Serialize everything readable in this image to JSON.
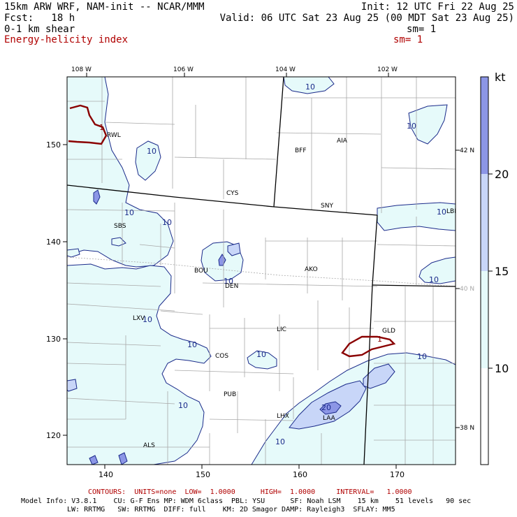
{
  "header": {
    "model": "15km ARW WRF, NAM-init -- NCAR/MMM",
    "init": "Init: 12 UTC Fri 22 Aug 25",
    "fcst": "Fcst:   18 h",
    "valid": "Valid: 06 UTC Sat 23 Aug 25 (00 MDT Sat 23 Aug 25)",
    "field1": "0-1 km shear",
    "field1_sm": "sm= 1",
    "field2": "Energy-helicity index",
    "field2_sm": "sm= 1"
  },
  "axes": {
    "top_lon": [
      "108 W",
      "106 W",
      "104 W",
      "102 W"
    ],
    "bottom_x": [
      "140",
      "150",
      "160",
      "170"
    ],
    "left_y": [
      "150",
      "140",
      "130",
      "120"
    ],
    "right_lat_dark": [
      "42 N",
      "38 N"
    ],
    "right_lat_gray": [
      "40 N"
    ]
  },
  "colorbar": {
    "unit": "kt",
    "labels": [
      "20",
      "15",
      "10"
    ],
    "colors": [
      "#8c96e6",
      "#c8d6f8",
      "#e6fafa",
      "#ffffff"
    ]
  },
  "cities": [
    "RWL",
    "BFF",
    "AIA",
    "CYS",
    "SNY",
    "LBF",
    "SBS",
    "BOU",
    "DEN",
    "AKO",
    "LIC",
    "GLD",
    "LXV",
    "COS",
    "PUB",
    "LHX",
    "LAA",
    "ALS"
  ],
  "contour_labels": [
    "10",
    "10",
    "10",
    "10",
    "10",
    "10",
    "10",
    "10",
    "10",
    "10",
    "10",
    "10",
    "10",
    "10",
    "20",
    "1",
    "1"
  ],
  "footer": {
    "contours": "CONTOURS:  UNITS=none  LOW=  1.0000      HIGH=  1.0000     INTERVAL=   1.0000",
    "model_info1": "Model Info: V3.8.1    CU: G-F Ens MP: WDM 6class  PBL: YSU      SF: Noah LSM    15 km    51 levels   90 sec",
    "model_info2": "LW: RRTMG   SW: RRTMG  DIFF: full    KM: 2D Smagor DAMP: Rayleigh3  SFLAY: MM5"
  }
}
